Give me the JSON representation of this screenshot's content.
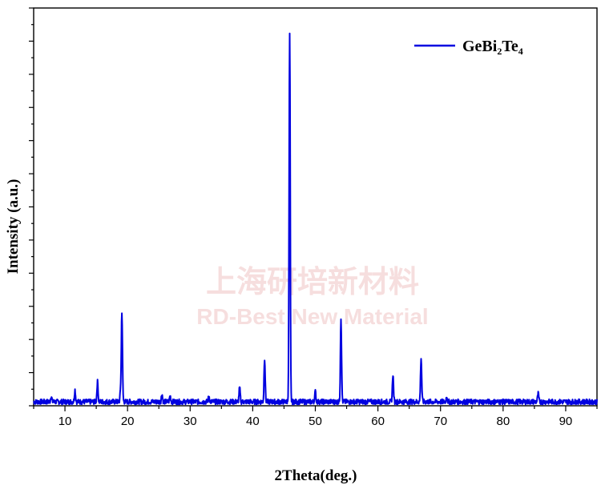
{
  "chart_data": {
    "type": "line",
    "title": "",
    "xlabel": "2Theta(deg.)",
    "ylabel": "Intensity (a.u.)",
    "xlim": [
      5,
      95
    ],
    "ylim": [
      0,
      100
    ],
    "x_ticks": [
      10,
      20,
      30,
      40,
      50,
      60,
      70,
      80,
      90
    ],
    "y_tick_labels_shown": false,
    "grid": false,
    "legend_position": "top-right",
    "series": [
      {
        "name": "GeBi2Te4",
        "color": "#0000e0",
        "baseline": 1.0,
        "peaks": [
          {
            "x": 7.8,
            "y": 2.5
          },
          {
            "x": 11.6,
            "y": 4.0
          },
          {
            "x": 15.2,
            "y": 6.0
          },
          {
            "x": 18.9,
            "y": 4.0
          },
          {
            "x": 19.1,
            "y": 23.5
          },
          {
            "x": 25.5,
            "y": 3.0
          },
          {
            "x": 26.8,
            "y": 2.5
          },
          {
            "x": 33.0,
            "y": 2.5
          },
          {
            "x": 37.9,
            "y": 4.5
          },
          {
            "x": 41.9,
            "y": 12.0
          },
          {
            "x": 45.9,
            "y": 93.5
          },
          {
            "x": 50.0,
            "y": 3.5
          },
          {
            "x": 54.1,
            "y": 22.0
          },
          {
            "x": 62.4,
            "y": 8.0
          },
          {
            "x": 66.9,
            "y": 12.0
          },
          {
            "x": 71.0,
            "y": 2.5
          },
          {
            "x": 85.6,
            "y": 3.0
          }
        ]
      }
    ]
  },
  "legend": {
    "prefix": "GeBi",
    "sub": "2",
    "mid": "Te",
    "sub2": "4"
  },
  "watermark": {
    "line1": "上海研培新材料",
    "line2": "RD-Best New Material"
  }
}
